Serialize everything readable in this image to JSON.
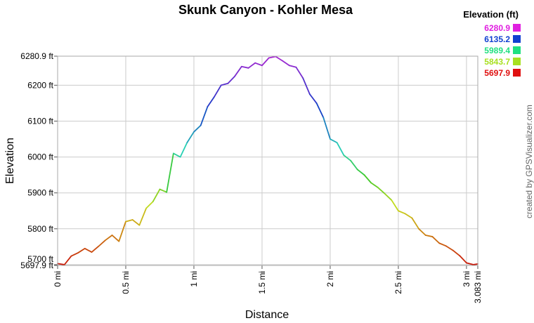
{
  "chart_data": {
    "type": "line",
    "title": "Skunk Canyon - Kohler Mesa",
    "xlabel": "Distance",
    "ylabel": "Elevation",
    "xlim": [
      0,
      3.083
    ],
    "ylim": [
      5697.9,
      6280.9
    ],
    "x_ticks": [
      {
        "value": 0,
        "label": "0 mi"
      },
      {
        "value": 0.5,
        "label": "0.5 mi"
      },
      {
        "value": 1,
        "label": "1 mi"
      },
      {
        "value": 1.5,
        "label": "1.5 mi"
      },
      {
        "value": 2,
        "label": "2 mi"
      },
      {
        "value": 2.5,
        "label": "2.5 mi"
      },
      {
        "value": 3,
        "label": "3 mi"
      },
      {
        "value": 3.083,
        "label": "3.083 mi"
      }
    ],
    "y_ticks": [
      {
        "value": 5697.9,
        "label": "5697.9 ft"
      },
      {
        "value": 5700,
        "label": "5700 ft"
      },
      {
        "value": 5800,
        "label": "5800 ft"
      },
      {
        "value": 5900,
        "label": "5900 ft"
      },
      {
        "value": 6000,
        "label": "6000 ft"
      },
      {
        "value": 6100,
        "label": "6100 ft"
      },
      {
        "value": 6200,
        "label": "6200 ft"
      },
      {
        "value": 6280.9,
        "label": "6280.9 ft"
      }
    ],
    "grid": true,
    "legend": {
      "title": "Elevation (ft)",
      "placement": "top-right",
      "entries": [
        {
          "label": "6280.9",
          "color": "#e020e0"
        },
        {
          "label": "6135.2",
          "color": "#1040d0"
        },
        {
          "label": "5989.4",
          "color": "#20e080"
        },
        {
          "label": "5843.7",
          "color": "#a8e020"
        },
        {
          "label": "5697.9",
          "color": "#e01010"
        }
      ]
    },
    "series": [
      {
        "color_by_value": true,
        "x": [
          0,
          0.05,
          0.1,
          0.15,
          0.2,
          0.25,
          0.3,
          0.35,
          0.4,
          0.45,
          0.5,
          0.55,
          0.6,
          0.65,
          0.7,
          0.75,
          0.8,
          0.85,
          0.9,
          0.95,
          1.0,
          1.05,
          1.1,
          1.15,
          1.2,
          1.25,
          1.3,
          1.35,
          1.4,
          1.45,
          1.5,
          1.55,
          1.6,
          1.65,
          1.7,
          1.75,
          1.8,
          1.85,
          1.9,
          1.95,
          2.0,
          2.05,
          2.1,
          2.15,
          2.2,
          2.25,
          2.3,
          2.35,
          2.4,
          2.45,
          2.5,
          2.55,
          2.6,
          2.65,
          2.7,
          2.75,
          2.8,
          2.85,
          2.9,
          2.95,
          3.0,
          3.05,
          3.083
        ],
        "y": [
          5703,
          5700,
          5724,
          5733,
          5745,
          5735,
          5751,
          5768,
          5782,
          5765,
          5820,
          5825,
          5810,
          5857,
          5876,
          5910,
          5902,
          6010,
          6000,
          6040,
          6070,
          6088,
          6140,
          6168,
          6200,
          6205,
          6225,
          6252,
          6248,
          6262,
          6255,
          6276,
          6280,
          6268,
          6255,
          6250,
          6220,
          6175,
          6150,
          6110,
          6050,
          6040,
          6005,
          5990,
          5965,
          5950,
          5928,
          5915,
          5898,
          5880,
          5850,
          5842,
          5830,
          5800,
          5782,
          5778,
          5760,
          5752,
          5740,
          5725,
          5705,
          5700,
          5702
        ]
      }
    ]
  },
  "credit": "created by GPSVisualizer.com"
}
